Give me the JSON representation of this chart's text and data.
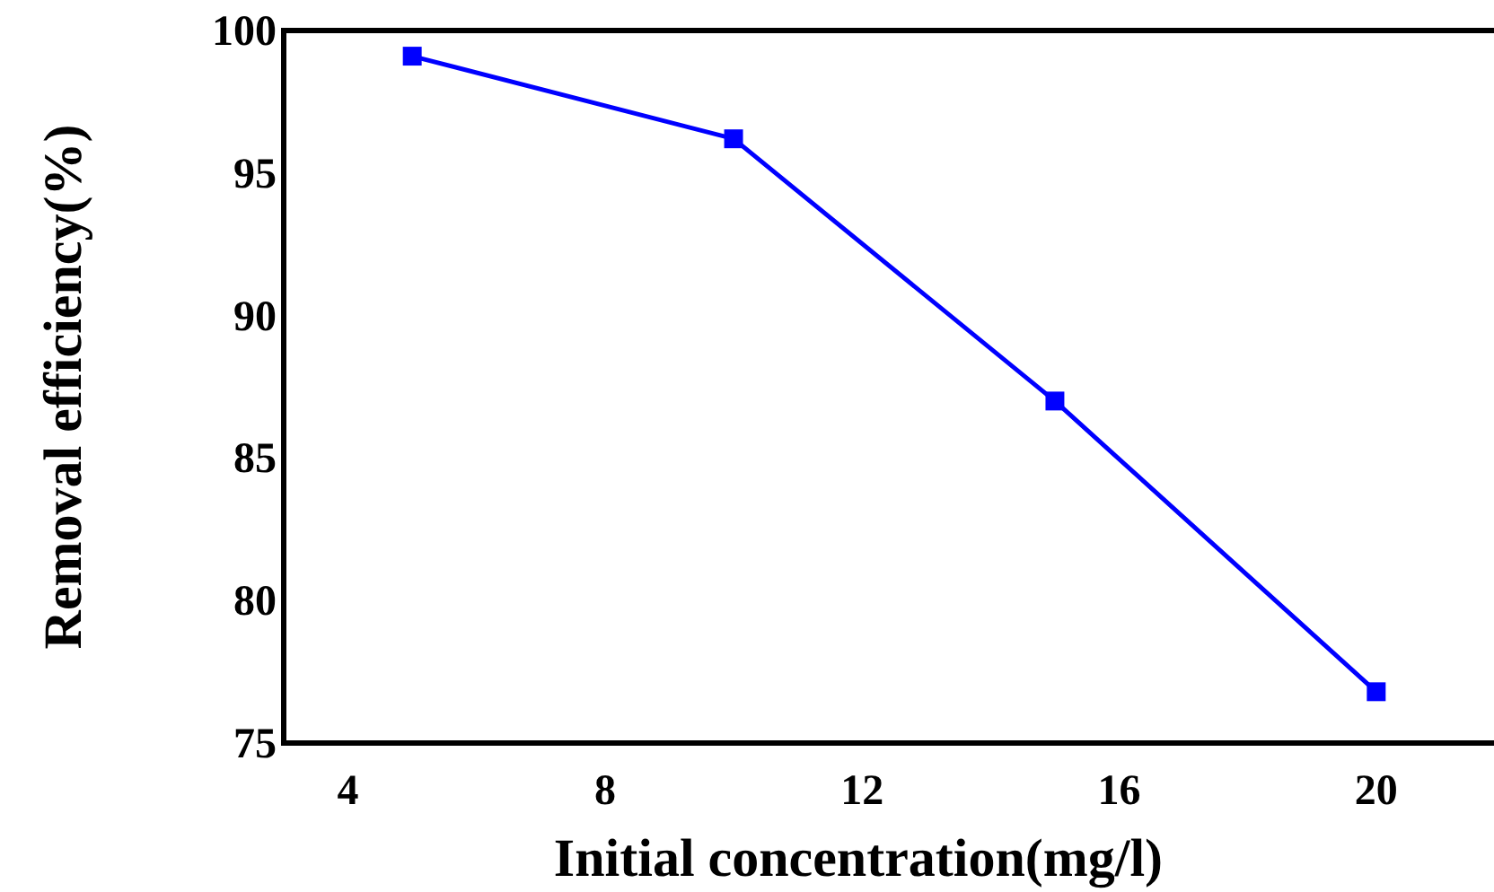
{
  "chart_data": {
    "type": "line",
    "xlabel": "Initial concentration(mg/l)",
    "ylabel": "Removal efficiency(%)",
    "x": [
      5,
      10,
      15,
      20
    ],
    "series": [
      {
        "color": "#0000ff",
        "values": [
          99.1,
          96.2,
          87,
          76.8
        ]
      }
    ],
    "xlim": [
      3,
      22
    ],
    "xticks": [
      4,
      8,
      12,
      16,
      20
    ],
    "ylim": [
      75,
      100
    ],
    "yticks": [
      75,
      80,
      85,
      90,
      95,
      100
    ],
    "marker": "square",
    "grid": false
  }
}
